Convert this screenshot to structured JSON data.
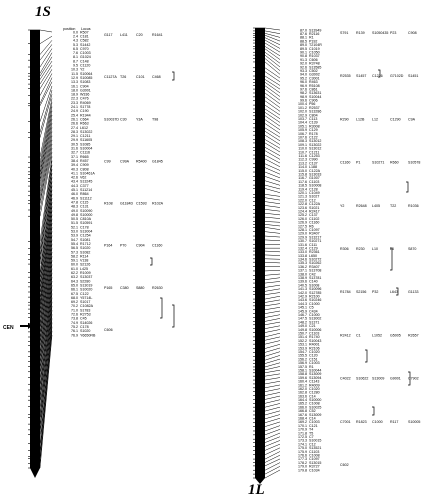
{
  "left_map": {
    "title": "1S",
    "header_position": "position",
    "header_locus": "Locus",
    "centromere_label": "CEN",
    "loci": [
      {
        "pos": "0.0",
        "name": "R507"
      },
      {
        "pos": "2.4",
        "name": "C181"
      },
      {
        "pos": "4.3",
        "name": "C582"
      },
      {
        "pos": "5.3",
        "name": "S1442"
      },
      {
        "pos": "6.5",
        "name": "C970"
      },
      {
        "pos": "7.6",
        "name": "C1003"
      },
      {
        "pos": "8.1",
        "name": "G1024"
      },
      {
        "pos": "8.7",
        "name": "C148"
      },
      {
        "pos": "9.5",
        "name": "C1120"
      },
      {
        "pos": "10.3",
        "name": "Y2"
      },
      {
        "pos": "11.5",
        "name": "S10064"
      },
      {
        "pos": "12.9",
        "name": "S10085"
      },
      {
        "pos": "13.3",
        "name": "S1083"
      },
      {
        "pos": "16.1",
        "name": "C904"
      },
      {
        "pos": "18.0",
        "name": "G3001"
      },
      {
        "pos": "18.9",
        "name": "W336"
      },
      {
        "pos": "22.3",
        "name": "C476"
      },
      {
        "pos": "23.3",
        "name": "R4069"
      },
      {
        "pos": "24.1",
        "name": "S1778"
      },
      {
        "pos": "24.9",
        "name": "C190"
      },
      {
        "pos": "25.4",
        "name": "R1944"
      },
      {
        "pos": "26.1",
        "name": "C664"
      },
      {
        "pos": "26.6",
        "name": "R663"
      },
      {
        "pos": "27.4",
        "name": "L612"
      },
      {
        "pos": "28.3",
        "name": "S13022"
      },
      {
        "pos": "29.1",
        "name": "C1211"
      },
      {
        "pos": "29.9",
        "name": "S11605"
      },
      {
        "pos": "30.5",
        "name": "S1085"
      },
      {
        "pos": "31.6",
        "name": "S10004"
      },
      {
        "pos": "32.7",
        "name": "C1116"
      },
      {
        "pos": "37.1",
        "name": "R665"
      },
      {
        "pos": "38.4",
        "name": "R457"
      },
      {
        "pos": "39.4",
        "name": "C909"
      },
      {
        "pos": "40.3",
        "name": "C808"
      },
      {
        "pos": "41.1",
        "name": "S10461A"
      },
      {
        "pos": "42.6",
        "name": "V62"
      },
      {
        "pos": "43.4",
        "name": "S13245"
      },
      {
        "pos": "44.3",
        "name": "C377"
      },
      {
        "pos": "45.1",
        "name": "S11214"
      },
      {
        "pos": "46.0",
        "name": "R864"
      },
      {
        "pos": "46.9",
        "name": "S11112"
      },
      {
        "pos": "47.8",
        "name": "C115"
      },
      {
        "pos": "48.3",
        "name": "C131"
      },
      {
        "pos": "49.0",
        "name": "S10090"
      },
      {
        "pos": "49.8",
        "name": "S10000"
      },
      {
        "pos": "50.5",
        "name": "C810A"
      },
      {
        "pos": "51.5",
        "name": "S10591"
      },
      {
        "pos": "52.1",
        "name": "C178"
      },
      {
        "pos": "53.0",
        "name": "S13004"
      },
      {
        "pos": "53.9",
        "name": "C1254"
      },
      {
        "pos": "54.7",
        "name": "S1081"
      },
      {
        "pos": "55.4",
        "name": "R1712"
      },
      {
        "pos": "56.5",
        "name": "S1020"
      },
      {
        "pos": "57.3",
        "name": "S1082"
      },
      {
        "pos": "58.2",
        "name": "R114"
      },
      {
        "pos": "59.1",
        "name": "V138"
      },
      {
        "pos": "60.0",
        "name": "S2126"
      },
      {
        "pos": "61.0",
        "name": "L425"
      },
      {
        "pos": "62.2",
        "name": "R1009"
      },
      {
        "pos": "63.2",
        "name": "S13037"
      },
      {
        "pos": "64.3",
        "name": "S2280"
      },
      {
        "pos": "65.0",
        "name": "S13019"
      },
      {
        "pos": "66.1",
        "name": "S10020"
      },
      {
        "pos": "67.5",
        "name": "C122"
      },
      {
        "pos": "68.0",
        "name": "Y5714L"
      },
      {
        "pos": "69.2",
        "name": "S1017"
      },
      {
        "pos": "70.2",
        "name": "C1082A"
      },
      {
        "pos": "71.0",
        "name": "S1783"
      },
      {
        "pos": "72.6",
        "name": "R2753"
      },
      {
        "pos": "73.8",
        "name": "C45"
      },
      {
        "pos": "74.9",
        "name": "S14026"
      },
      {
        "pos": "75.2",
        "name": "C178"
      },
      {
        "pos": "76.1",
        "name": "S1020"
      },
      {
        "pos": "76.9",
        "name": "Y6650RB"
      }
    ],
    "extra_markers": [
      "G117",
      "L411",
      "C20",
      "R1641",
      "C1127A",
      "T26",
      "C101",
      "C468",
      "S10037D",
      "C30",
      "Y3A",
      "T98",
      "C99",
      "C99A",
      "R5400",
      "G1845",
      "R108",
      "G1184D",
      "C1593",
      "R102A",
      "P164",
      "P70",
      "C904",
      "C1160",
      "P165",
      "C380",
      "S880",
      "R2630",
      "C606"
    ]
  },
  "right_map": {
    "title": "1L",
    "loci": [
      {
        "pos": "87.0",
        "name": "S13949"
      },
      {
        "pos": "87.6",
        "name": "R2116"
      },
      {
        "pos": "88.1",
        "name": "R1"
      },
      {
        "pos": "88.5",
        "name": "P192"
      },
      {
        "pos": "89.0",
        "name": "T2104R"
      },
      {
        "pos": "89.5",
        "name": "C1019"
      },
      {
        "pos": "90.1",
        "name": "C1050"
      },
      {
        "pos": "90.8",
        "name": "R1037"
      },
      {
        "pos": "91.3",
        "name": "C606"
      },
      {
        "pos": "92.0",
        "name": "R3748"
      },
      {
        "pos": "92.6",
        "name": "S13585"
      },
      {
        "pos": "93.3",
        "name": "C502"
      },
      {
        "pos": "94.0",
        "name": "G3002"
      },
      {
        "pos": "95.2",
        "name": "C3001"
      },
      {
        "pos": "96.0",
        "name": "R463"
      },
      {
        "pos": "96.9",
        "name": "R5108"
      },
      {
        "pos": "97.6",
        "name": "C861"
      },
      {
        "pos": "98.2",
        "name": "S13631"
      },
      {
        "pos": "98.9",
        "name": "S10044"
      },
      {
        "pos": "99.6",
        "name": "C906"
      },
      {
        "pos": "100.4",
        "name": "P56"
      },
      {
        "pos": "101.2",
        "name": "R2537"
      },
      {
        "pos": "102.0",
        "name": "S13286"
      },
      {
        "pos": "102.9",
        "name": "C804"
      },
      {
        "pos": "103.7",
        "name": "C113"
      },
      {
        "pos": "104.4",
        "name": "C139"
      },
      {
        "pos": "105.1",
        "name": "R3008"
      },
      {
        "pos": "105.9",
        "name": "C129"
      },
      {
        "pos": "106.7",
        "name": "R178"
      },
      {
        "pos": "107.6",
        "name": "C122"
      },
      {
        "pos": "108.3",
        "name": "S13012"
      },
      {
        "pos": "109.1",
        "name": "S13022"
      },
      {
        "pos": "110.0",
        "name": "S13012"
      },
      {
        "pos": "110.7",
        "name": "C1211"
      },
      {
        "pos": "111.6",
        "name": "C1253"
      },
      {
        "pos": "112.3",
        "name": "C990"
      },
      {
        "pos": "113.2",
        "name": "C137"
      },
      {
        "pos": "114.0",
        "name": "L188"
      },
      {
        "pos": "115.0",
        "name": "C122A"
      },
      {
        "pos": "115.8",
        "name": "S13033"
      },
      {
        "pos": "116.7",
        "name": "G1007"
      },
      {
        "pos": "117.6",
        "name": "C1103"
      },
      {
        "pos": "118.5",
        "name": "S10008"
      },
      {
        "pos": "119.4",
        "name": "C128"
      },
      {
        "pos": "120.1",
        "name": "C1049"
      },
      {
        "pos": "121.3",
        "name": "S1027"
      },
      {
        "pos": "122.0",
        "name": "C12"
      },
      {
        "pos": "122.8",
        "name": "C122A"
      },
      {
        "pos": "123.6",
        "name": "S1021"
      },
      {
        "pos": "124.4",
        "name": "R2417"
      },
      {
        "pos": "125.2",
        "name": "C137"
      },
      {
        "pos": "126.0",
        "name": "C1102"
      },
      {
        "pos": "126.9",
        "name": "C1160"
      },
      {
        "pos": "127.5",
        "name": "R6"
      },
      {
        "pos": "128.1",
        "name": "C1097"
      },
      {
        "pos": "129.0",
        "name": "R3407"
      },
      {
        "pos": "129.9",
        "name": "S13217"
      },
      {
        "pos": "130.7",
        "name": "S10271"
      },
      {
        "pos": "131.6",
        "name": "C111"
      },
      {
        "pos": "132.4",
        "name": "C129"
      },
      {
        "pos": "133.0",
        "name": "R2361"
      },
      {
        "pos": "133.8",
        "name": "L650"
      },
      {
        "pos": "134.6",
        "name": "S10272"
      },
      {
        "pos": "135.3",
        "name": "S10262"
      },
      {
        "pos": "136.2",
        "name": "R3407"
      },
      {
        "pos": "137.1",
        "name": "S13708"
      },
      {
        "pos": "138.0",
        "name": "C42"
      },
      {
        "pos": "138.9",
        "name": "S13781"
      },
      {
        "pos": "139.6",
        "name": "C140"
      },
      {
        "pos": "140.5",
        "name": "S1008"
      },
      {
        "pos": "141.3",
        "name": "S10096"
      },
      {
        "pos": "142.0",
        "name": "S12785"
      },
      {
        "pos": "142.9",
        "name": "R2100"
      },
      {
        "pos": "143.6",
        "name": "S10246"
      },
      {
        "pos": "144.3",
        "name": "C1000"
      },
      {
        "pos": "145.1",
        "name": "C5"
      },
      {
        "pos": "145.9",
        "name": "C434"
      },
      {
        "pos": "146.7",
        "name": "C1000"
      },
      {
        "pos": "147.5",
        "name": "S13002"
      },
      {
        "pos": "148.2",
        "name": "S1371"
      },
      {
        "pos": "149.0",
        "name": "C21"
      },
      {
        "pos": "149.8",
        "name": "S10006"
      },
      {
        "pos": "150.7",
        "name": "C1103"
      },
      {
        "pos": "151.4",
        "name": "R1740"
      },
      {
        "pos": "152.2",
        "name": "S10043"
      },
      {
        "pos": "153.1",
        "name": "R4001"
      },
      {
        "pos": "153.9",
        "name": "R2106"
      },
      {
        "pos": "154.7",
        "name": "C1020"
      },
      {
        "pos": "155.5",
        "name": "C120"
      },
      {
        "pos": "156.2",
        "name": "C151"
      },
      {
        "pos": "156.9",
        "name": "C1003"
      },
      {
        "pos": "157.5",
        "name": "R1"
      },
      {
        "pos": "158.1",
        "name": "S10044"
      },
      {
        "pos": "158.8",
        "name": "S13009"
      },
      {
        "pos": "159.6",
        "name": "S13094"
      },
      {
        "pos": "160.4",
        "name": "C1143"
      },
      {
        "pos": "161.2",
        "name": "R4009"
      },
      {
        "pos": "162.0",
        "name": "C1020"
      },
      {
        "pos": "162.8",
        "name": "C1280"
      },
      {
        "pos": "163.6",
        "name": "C14"
      },
      {
        "pos": "164.4",
        "name": "S10000"
      },
      {
        "pos": "165.2",
        "name": "C1008"
      },
      {
        "pos": "166.0",
        "name": "S10025"
      },
      {
        "pos": "166.8",
        "name": "C52"
      },
      {
        "pos": "167.6",
        "name": "S13009"
      },
      {
        "pos": "168.4",
        "name": "C14"
      },
      {
        "pos": "169.2",
        "name": "C1003"
      },
      {
        "pos": "170.1",
        "name": "C121"
      },
      {
        "pos": "170.9",
        "name": "T4"
      },
      {
        "pos": "171.8",
        "name": "T5"
      },
      {
        "pos": "172.5",
        "name": "C7"
      },
      {
        "pos": "173.3",
        "name": "S10015"
      },
      {
        "pos": "174.1",
        "name": "C12"
      },
      {
        "pos": "175.0",
        "name": "S13521"
      },
      {
        "pos": "175.9",
        "name": "C1103"
      },
      {
        "pos": "176.6",
        "name": "C1008"
      },
      {
        "pos": "177.3",
        "name": "C1097"
      },
      {
        "pos": "178.2",
        "name": "S13015"
      },
      {
        "pos": "179.0",
        "name": "R3727"
      },
      {
        "pos": "179.8",
        "name": "C1034"
      }
    ],
    "extra_markers": [
      "S791",
      "R139",
      "S1050435",
      "P23",
      "C908",
      "R2535",
      "S1457",
      "C1276",
      "G7102D",
      "S1451",
      "R290",
      "L12B",
      "L12",
      "C1290",
      "C9A",
      "C1160",
      "P1",
      "S10271",
      "R660",
      "S10578",
      "Y2",
      "R2648",
      "L405",
      "T22",
      "R1036",
      "R306",
      "R230",
      "L10",
      "L6",
      "S870",
      "R1784",
      "S2156",
      "P32",
      "L643",
      "G1133",
      "R2412",
      "C1",
      "L1052",
      "G5005",
      "R2657",
      "C4022",
      "S10622",
      "S13009",
      "G9001",
      "C7902",
      "C7001",
      "R1823",
      "C1000",
      "R117",
      "S10005",
      "C602"
    ]
  }
}
